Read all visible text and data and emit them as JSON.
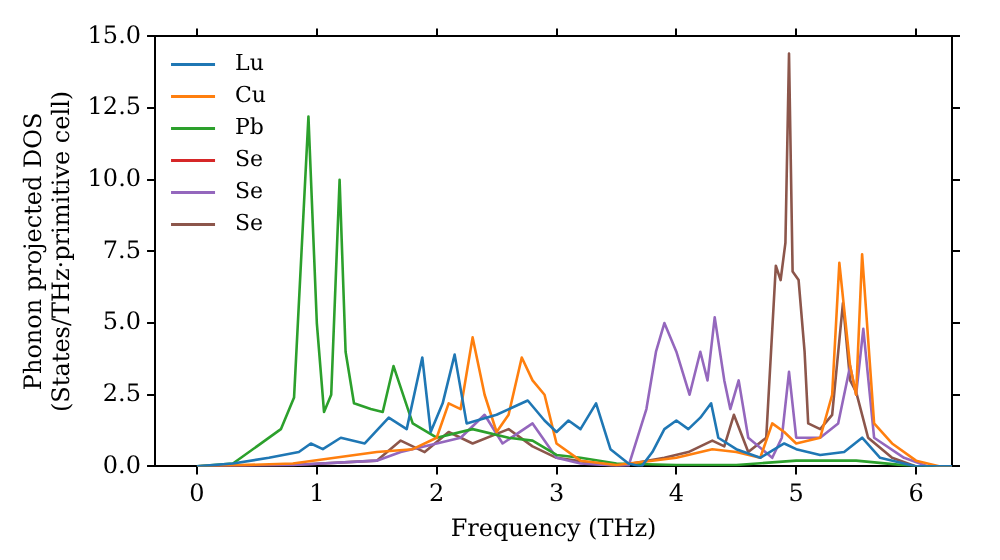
{
  "chart_data": {
    "type": "line",
    "xlabel": "Frequency (THz)",
    "ylabel": "Phonon projected DOS\n(States/THz·primitive cell)",
    "xlim": [
      -0.35,
      6.3
    ],
    "xticks": [
      0,
      1,
      2,
      3,
      4,
      5,
      6
    ],
    "ylim": [
      0,
      15
    ],
    "yticks": [
      {
        "value": 0,
        "label": "0.0"
      },
      {
        "value": 2.5,
        "label": "2.5"
      },
      {
        "value": 5,
        "label": "5.0"
      },
      {
        "value": 7.5,
        "label": "7.5"
      },
      {
        "value": 10,
        "label": "10.0"
      },
      {
        "value": 12.5,
        "label": "12.5"
      },
      {
        "value": 15,
        "label": "15.0"
      }
    ],
    "grid": false,
    "legend": "top left",
    "marker": "none",
    "line_style": "solid",
    "series": [
      {
        "name": "Lu",
        "color": "#1f77b4",
        "x": [
          0,
          0.3,
          0.6,
          0.85,
          0.95,
          1.05,
          1.2,
          1.4,
          1.6,
          1.75,
          1.88,
          1.95,
          2.05,
          2.15,
          2.25,
          2.5,
          2.76,
          2.9,
          3.0,
          3.1,
          3.2,
          3.33,
          3.45,
          3.6,
          3.71,
          3.8,
          3.9,
          4.0,
          4.1,
          4.2,
          4.29,
          4.35,
          4.5,
          4.7,
          4.9,
          5.0,
          5.2,
          5.4,
          5.55,
          5.7,
          6.0,
          6.3
        ],
        "values": [
          0,
          0.1,
          0.3,
          0.5,
          0.8,
          0.6,
          1.0,
          0.8,
          1.7,
          1.3,
          3.8,
          1.2,
          2.2,
          3.9,
          1.5,
          1.8,
          2.3,
          1.6,
          1.2,
          1.6,
          1.3,
          2.2,
          0.6,
          0.1,
          0,
          0.5,
          1.3,
          1.6,
          1.3,
          1.7,
          2.2,
          1.0,
          0.6,
          0.3,
          0.8,
          0.6,
          0.4,
          0.5,
          1.0,
          0.3,
          0,
          0
        ]
      },
      {
        "name": "Cu",
        "color": "#ff7f0e",
        "x": [
          0,
          0.8,
          1.5,
          1.8,
          2.0,
          2.1,
          2.2,
          2.3,
          2.4,
          2.5,
          2.6,
          2.71,
          2.8,
          2.9,
          3.0,
          3.2,
          3.5,
          3.8,
          4.0,
          4.3,
          4.5,
          4.7,
          4.8,
          4.9,
          5.0,
          5.2,
          5.3,
          5.36,
          5.45,
          5.5,
          5.55,
          5.65,
          5.8,
          6.0,
          6.2,
          6.3
        ],
        "values": [
          0,
          0.1,
          0.5,
          0.6,
          1.0,
          2.2,
          2.0,
          4.5,
          2.5,
          1.2,
          1.8,
          3.8,
          3.0,
          2.5,
          0.8,
          0.2,
          0.05,
          0.2,
          0.3,
          0.6,
          0.5,
          0.3,
          1.5,
          1.2,
          0.8,
          1.0,
          2.5,
          7.1,
          3.5,
          2.5,
          7.4,
          1.5,
          0.8,
          0.2,
          0,
          0
        ]
      },
      {
        "name": "Pb",
        "color": "#2ca02c",
        "x": [
          0,
          0.3,
          0.5,
          0.7,
          0.81,
          0.93,
          1.0,
          1.06,
          1.12,
          1.19,
          1.24,
          1.31,
          1.45,
          1.55,
          1.64,
          1.8,
          2.0,
          2.3,
          2.6,
          2.8,
          3.0,
          3.2,
          3.5,
          4.0,
          4.5,
          5.0,
          5.5,
          6.0,
          6.3
        ],
        "values": [
          0,
          0.1,
          0.7,
          1.3,
          2.4,
          12.2,
          5.0,
          1.9,
          2.5,
          10.0,
          4.0,
          2.2,
          2.0,
          1.9,
          3.5,
          1.5,
          1.0,
          1.3,
          1.0,
          0.9,
          0.4,
          0.3,
          0.1,
          0.05,
          0.05,
          0.2,
          0.2,
          0,
          0
        ]
      },
      {
        "name": "Se",
        "color": "#d62728"
      },
      {
        "name": "Se",
        "color": "#9467bd",
        "x": [
          0,
          0.8,
          1.5,
          1.7,
          2.0,
          2.2,
          2.4,
          2.55,
          2.8,
          3.0,
          3.2,
          3.6,
          3.75,
          3.83,
          3.9,
          4.0,
          4.11,
          4.2,
          4.26,
          4.32,
          4.4,
          4.45,
          4.52,
          4.6,
          4.8,
          4.88,
          4.94,
          5.0,
          5.2,
          5.35,
          5.45,
          5.5,
          5.56,
          5.65,
          5.9,
          6.1,
          6.3
        ],
        "values": [
          0,
          0.05,
          0.2,
          0.5,
          0.8,
          1.0,
          1.8,
          0.8,
          1.5,
          0.3,
          0.1,
          0,
          2.0,
          4.0,
          5.0,
          4.0,
          2.5,
          4.0,
          3.0,
          5.2,
          3.0,
          2.0,
          3.0,
          1.0,
          0.3,
          1.0,
          3.3,
          1.0,
          1.0,
          1.5,
          3.5,
          2.5,
          4.8,
          1.0,
          0.3,
          0,
          0
        ]
      },
      {
        "name": "Se",
        "color": "#8c564b",
        "x": [
          0,
          0.8,
          1.5,
          1.7,
          1.9,
          2.1,
          2.3,
          2.6,
          2.8,
          3.0,
          3.5,
          3.9,
          4.1,
          4.3,
          4.4,
          4.48,
          4.6,
          4.75,
          4.83,
          4.87,
          4.91,
          4.94,
          4.97,
          5.02,
          5.07,
          5.1,
          5.2,
          5.3,
          5.39,
          5.45,
          5.5,
          5.6,
          5.8,
          6.0,
          6.3
        ],
        "values": [
          0,
          0.05,
          0.2,
          0.9,
          0.5,
          1.2,
          0.8,
          1.3,
          0.7,
          0.3,
          0,
          0.3,
          0.5,
          0.9,
          0.7,
          1.8,
          0.5,
          1.0,
          7.0,
          6.5,
          7.8,
          14.4,
          6.8,
          6.5,
          4.0,
          1.5,
          1.3,
          1.8,
          5.7,
          3.0,
          2.6,
          1.0,
          0.3,
          0,
          0
        ]
      }
    ]
  }
}
